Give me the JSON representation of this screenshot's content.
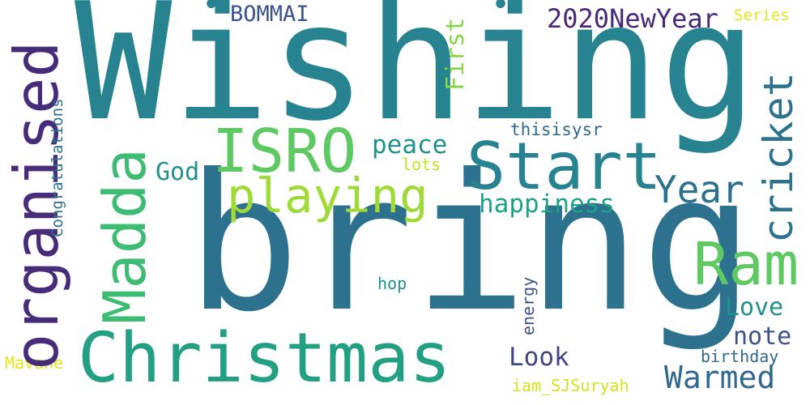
{
  "words": {
    "wishing": {
      "text": "Wishing",
      "color": "#26838f"
    },
    "bring": {
      "text": "bring",
      "color": "#2c718e"
    },
    "christmas": {
      "text": "Christmas",
      "color": "#23a083"
    },
    "organised": {
      "text": "organised",
      "color": "#472c7a"
    },
    "madda": {
      "text": "Madda",
      "color": "#3dbc74"
    },
    "isro": {
      "text": "ISRO",
      "color": "#5ec962"
    },
    "start": {
      "text": "Start",
      "color": "#26838f"
    },
    "playing": {
      "text": "playing",
      "color": "#a0da39"
    },
    "ram": {
      "text": "Ram",
      "color": "#5ec962"
    },
    "cricket": {
      "text": "cricket",
      "color": "#2c718e"
    },
    "year": {
      "text": "Year",
      "color": "#2c718e"
    },
    "warmed": {
      "text": "Warmed",
      "color": "#31688e"
    },
    "love": {
      "text": "Love",
      "color": "#21918c"
    },
    "note": {
      "text": "note",
      "color": "#3b528b"
    },
    "look": {
      "text": "Look",
      "color": "#414487"
    },
    "happiness": {
      "text": "happiness",
      "color": "#1fa188"
    },
    "peace": {
      "text": "peace",
      "color": "#21918c"
    },
    "god": {
      "text": "God",
      "color": "#21918c"
    },
    "first": {
      "text": "First",
      "color": "#86d549"
    },
    "bommai": {
      "text": "BOMMAI",
      "color": "#3b528b"
    },
    "newyear": {
      "text": "2020NewYear",
      "color": "#482878"
    },
    "series": {
      "text": "Series",
      "color": "#e4e419"
    },
    "thisisysr": {
      "text": "thisisysr",
      "color": "#31688e"
    },
    "lots": {
      "text": "lots",
      "color": "#c2df23"
    },
    "congrats": {
      "text": "Congratulations",
      "color": "#2c718e"
    },
    "hop": {
      "text": "hop",
      "color": "#21918c"
    },
    "energy": {
      "text": "energy",
      "color": "#3b528b"
    },
    "birthday": {
      "text": "birthday",
      "color": "#31688e"
    },
    "mavane": {
      "text": "Mavane",
      "color": "#e4e419"
    },
    "iam_sjsuryah": {
      "text": "iam_SJSuryah",
      "color": "#d2e21b"
    },
    "dot1": {
      "text": "•",
      "color": "#26838f"
    },
    "dot2": {
      "text": "•",
      "color": "#26838f"
    }
  }
}
